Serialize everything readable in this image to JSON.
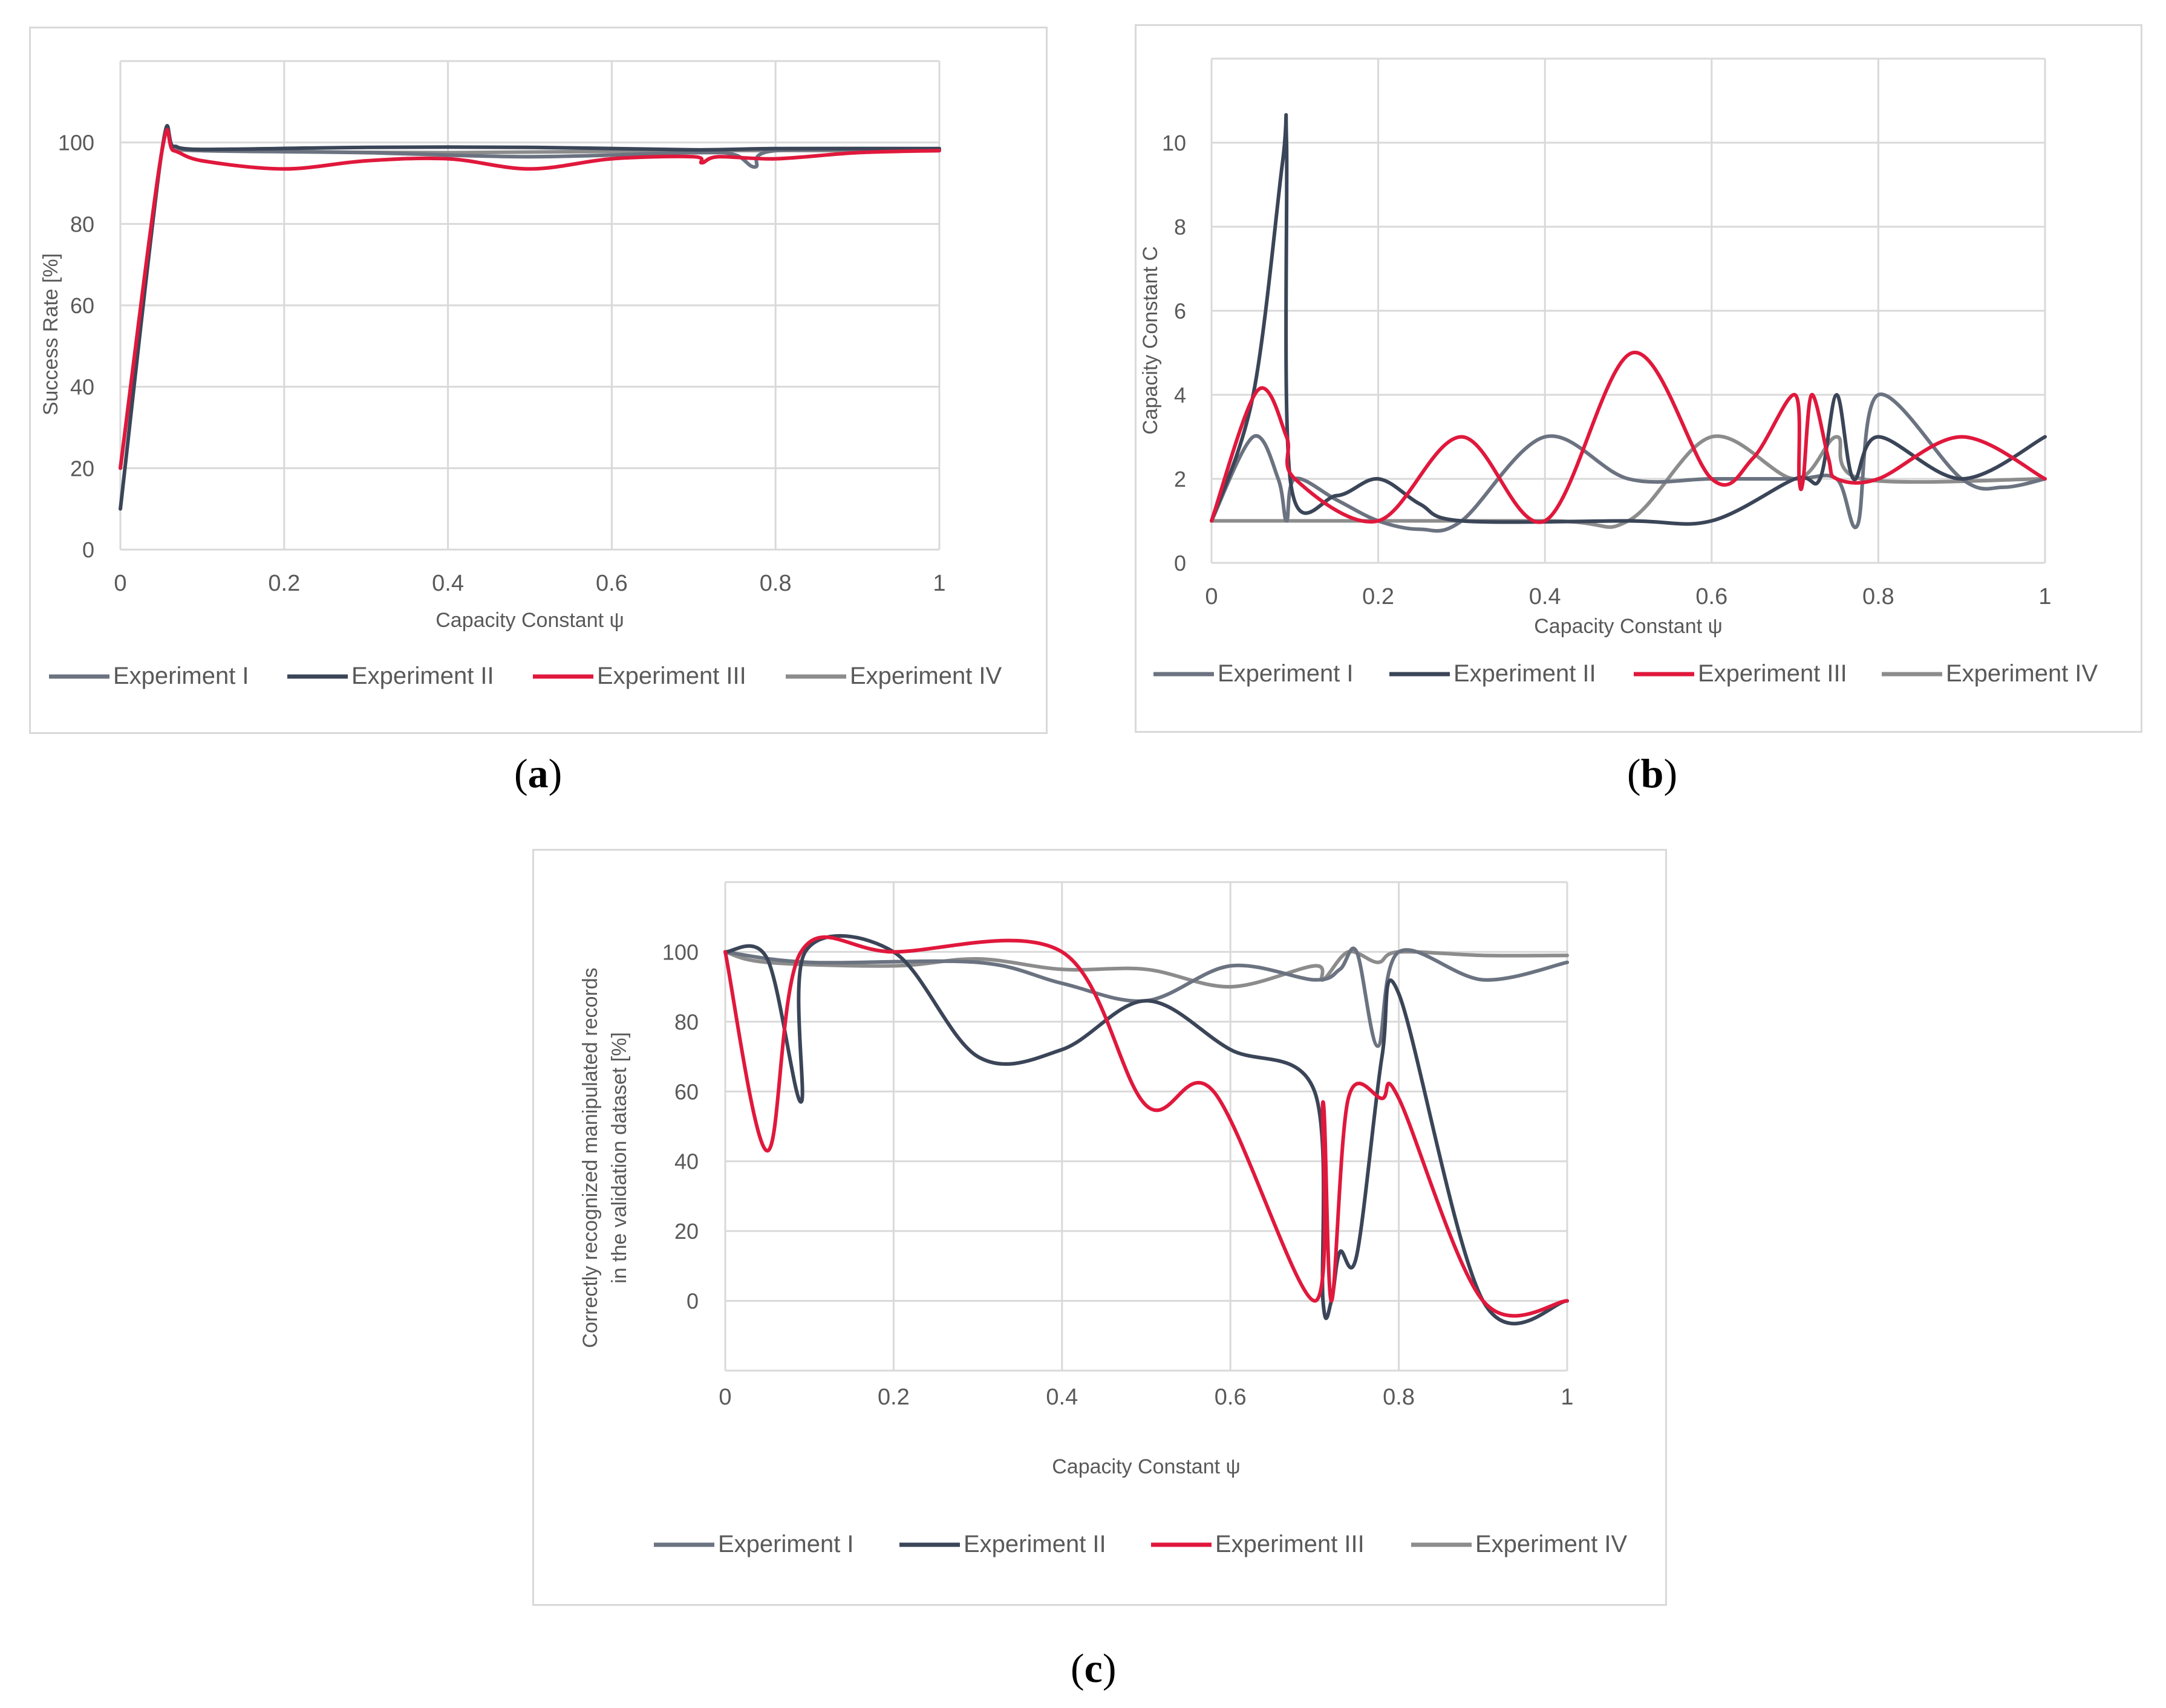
{
  "colors": {
    "experiment_i": "#6b7280",
    "experiment_ii": "#3b4558",
    "experiment_iii": "#e0183c",
    "experiment_iv": "#8c8c8c",
    "grid": "#d9d9d9",
    "axis_text": "#595959"
  },
  "captions": {
    "a": "a",
    "b": "b",
    "c": "c"
  },
  "chart_data": [
    {
      "id": "a",
      "type": "line",
      "xlabel": "Capacity Constant ψ",
      "ylabel": "Success Rate [%]",
      "xlim": [
        0,
        1
      ],
      "ylim": [
        0,
        120
      ],
      "xticks": [
        0,
        0.2,
        0.4,
        0.6,
        0.8,
        1
      ],
      "xtick_labels": [
        "0",
        "0.2",
        "0.4",
        "0.6",
        "0.8",
        "1"
      ],
      "yticks": [
        0,
        20,
        40,
        60,
        80,
        100
      ],
      "ytick_labels": [
        "0",
        "20",
        "40",
        "60",
        "80",
        "100"
      ],
      "grid": true,
      "legend_position": "bottom",
      "series": [
        {
          "name": "Experiment I",
          "color_key": "experiment_i",
          "points": [
            [
              0,
              20
            ],
            [
              0.05,
              97
            ],
            [
              0.065,
              99
            ],
            [
              0.1,
              98
            ],
            [
              0.3,
              97.5
            ],
            [
              0.5,
              96.5
            ],
            [
              0.7,
              97.5
            ],
            [
              0.75,
              97
            ],
            [
              0.775,
              94
            ],
            [
              0.8,
              98
            ],
            [
              1,
              98
            ]
          ]
        },
        {
          "name": "Experiment II",
          "color_key": "experiment_ii",
          "points": [
            [
              0,
              10
            ],
            [
              0.05,
              97
            ],
            [
              0.065,
              99
            ],
            [
              0.1,
              98.3
            ],
            [
              0.3,
              98.8
            ],
            [
              0.5,
              98.8
            ],
            [
              0.7,
              98.2
            ],
            [
              0.8,
              98.5
            ],
            [
              1,
              98.5
            ]
          ]
        },
        {
          "name": "Experiment III",
          "color_key": "experiment_iii",
          "points": [
            [
              0,
              20
            ],
            [
              0.05,
              97
            ],
            [
              0.065,
              98
            ],
            [
              0.1,
              95.5
            ],
            [
              0.2,
              93.5
            ],
            [
              0.3,
              95.5
            ],
            [
              0.4,
              96
            ],
            [
              0.5,
              93.5
            ],
            [
              0.6,
              96
            ],
            [
              0.7,
              96.5
            ],
            [
              0.71,
              95
            ],
            [
              0.73,
              96.5
            ],
            [
              0.8,
              96
            ],
            [
              0.9,
              97.5
            ],
            [
              1,
              98
            ]
          ]
        },
        {
          "name": "Experiment IV",
          "color_key": "experiment_iv",
          "points": [
            [
              0,
              20
            ],
            [
              0.05,
              97
            ],
            [
              0.065,
              98.5
            ],
            [
              0.1,
              98
            ],
            [
              0.4,
              97.5
            ],
            [
              0.7,
              98
            ],
            [
              1,
              98
            ]
          ]
        }
      ]
    },
    {
      "id": "b",
      "type": "line",
      "xlabel": "Capacity Constant ψ",
      "ylabel": "Capacity Constant C",
      "xlim": [
        0,
        1
      ],
      "ylim": [
        0,
        12
      ],
      "xticks": [
        0,
        0.2,
        0.4,
        0.6,
        0.8,
        1
      ],
      "xtick_labels": [
        "0",
        "0.2",
        "0.4",
        "0.6",
        "0.8",
        "1"
      ],
      "yticks": [
        0,
        2,
        4,
        6,
        8,
        10
      ],
      "ytick_labels": [
        "0",
        "2",
        "4",
        "6",
        "8",
        "10"
      ],
      "grid": true,
      "legend_position": "bottom",
      "series": [
        {
          "name": "Experiment I",
          "color_key": "experiment_i",
          "points": [
            [
              0,
              1
            ],
            [
              0.05,
              3
            ],
            [
              0.08,
              2
            ],
            [
              0.09,
              1
            ],
            [
              0.1,
              2
            ],
            [
              0.15,
              1.5
            ],
            [
              0.2,
              1
            ],
            [
              0.25,
              0.8
            ],
            [
              0.3,
              1
            ],
            [
              0.4,
              3
            ],
            [
              0.5,
              2
            ],
            [
              0.6,
              2
            ],
            [
              0.7,
              2
            ],
            [
              0.75,
              2
            ],
            [
              0.775,
              0.9
            ],
            [
              0.8,
              4
            ],
            [
              0.9,
              2
            ],
            [
              0.95,
              1.8
            ],
            [
              1,
              2
            ]
          ]
        },
        {
          "name": "Experiment II",
          "color_key": "experiment_ii",
          "points": [
            [
              0,
              1
            ],
            [
              0.05,
              4
            ],
            [
              0.085,
              9.5
            ],
            [
              0.09,
              10
            ],
            [
              0.095,
              1.9
            ],
            [
              0.15,
              1.6
            ],
            [
              0.2,
              2
            ],
            [
              0.25,
              1.4
            ],
            [
              0.3,
              1
            ],
            [
              0.5,
              1
            ],
            [
              0.6,
              1
            ],
            [
              0.7,
              2
            ],
            [
              0.73,
              2
            ],
            [
              0.75,
              4
            ],
            [
              0.77,
              2
            ],
            [
              0.8,
              3
            ],
            [
              0.9,
              2
            ],
            [
              1,
              3
            ]
          ]
        },
        {
          "name": "Experiment III",
          "color_key": "experiment_iii",
          "points": [
            [
              0,
              1
            ],
            [
              0.055,
              4.1
            ],
            [
              0.09,
              3
            ],
            [
              0.1,
              2
            ],
            [
              0.2,
              1
            ],
            [
              0.3,
              3
            ],
            [
              0.4,
              1
            ],
            [
              0.505,
              5
            ],
            [
              0.6,
              2
            ],
            [
              0.65,
              2.5
            ],
            [
              0.7,
              4
            ],
            [
              0.705,
              2
            ],
            [
              0.71,
              2
            ],
            [
              0.72,
              4
            ],
            [
              0.74,
              2.5
            ],
            [
              0.75,
              2
            ],
            [
              0.8,
              2
            ],
            [
              0.9,
              3
            ],
            [
              1,
              2
            ]
          ]
        },
        {
          "name": "Experiment IV",
          "color_key": "experiment_iv",
          "points": [
            [
              0,
              1
            ],
            [
              0.4,
              1
            ],
            [
              0.5,
              1
            ],
            [
              0.6,
              3
            ],
            [
              0.7,
              2
            ],
            [
              0.75,
              3
            ],
            [
              0.78,
              2
            ],
            [
              1,
              2
            ]
          ]
        }
      ]
    },
    {
      "id": "c",
      "type": "line",
      "xlabel": "Capacity Constant ψ",
      "ylabel": "Correctly recognized manipulated records",
      "ylabel2": "in the validation dataset [%]",
      "xlim": [
        0,
        1
      ],
      "ylim": [
        -20,
        120
      ],
      "xticks": [
        0,
        0.2,
        0.4,
        0.6,
        0.8,
        1
      ],
      "xtick_labels": [
        "0",
        "0.2",
        "0.4",
        "0.6",
        "0.8",
        "1"
      ],
      "yticks": [
        0,
        20,
        40,
        60,
        80,
        100
      ],
      "ytick_labels": [
        "0",
        "20",
        "40",
        "60",
        "80",
        "100"
      ],
      "grid": true,
      "legend_position": "bottom",
      "series": [
        {
          "name": "Experiment I",
          "color_key": "experiment_i",
          "points": [
            [
              0,
              100
            ],
            [
              0.1,
              97
            ],
            [
              0.3,
              97
            ],
            [
              0.4,
              91
            ],
            [
              0.5,
              86
            ],
            [
              0.6,
              96
            ],
            [
              0.7,
              92
            ],
            [
              0.73,
              95
            ],
            [
              0.75,
              100
            ],
            [
              0.775,
              73
            ],
            [
              0.8,
              100
            ],
            [
              0.9,
              92
            ],
            [
              1,
              97
            ]
          ]
        },
        {
          "name": "Experiment II",
          "color_key": "experiment_ii",
          "points": [
            [
              0,
              100
            ],
            [
              0.05,
              98
            ],
            [
              0.09,
              57
            ],
            [
              0.095,
              100
            ],
            [
              0.2,
              100
            ],
            [
              0.3,
              70
            ],
            [
              0.4,
              72
            ],
            [
              0.5,
              86
            ],
            [
              0.6,
              72
            ],
            [
              0.7,
              60
            ],
            [
              0.71,
              0
            ],
            [
              0.72,
              0
            ],
            [
              0.73,
              14
            ],
            [
              0.75,
              13
            ],
            [
              0.78,
              70
            ],
            [
              0.8,
              88
            ],
            [
              0.9,
              0
            ],
            [
              1,
              0
            ]
          ]
        },
        {
          "name": "Experiment III",
          "color_key": "experiment_iii",
          "points": [
            [
              0,
              100
            ],
            [
              0.05,
              43
            ],
            [
              0.09,
              100
            ],
            [
              0.2,
              100
            ],
            [
              0.4,
              100
            ],
            [
              0.5,
              56
            ],
            [
              0.58,
              60
            ],
            [
              0.7,
              0
            ],
            [
              0.71,
              57
            ],
            [
              0.72,
              0
            ],
            [
              0.74,
              58
            ],
            [
              0.78,
              58
            ],
            [
              0.8,
              58
            ],
            [
              0.9,
              0
            ],
            [
              1,
              0
            ]
          ]
        },
        {
          "name": "Experiment IV",
          "color_key": "experiment_iv",
          "points": [
            [
              0,
              100
            ],
            [
              0.05,
              97
            ],
            [
              0.2,
              96
            ],
            [
              0.3,
              98
            ],
            [
              0.4,
              95
            ],
            [
              0.5,
              95
            ],
            [
              0.6,
              90
            ],
            [
              0.7,
              96
            ],
            [
              0.71,
              92
            ],
            [
              0.74,
              100
            ],
            [
              0.775,
              97
            ],
            [
              0.8,
              100
            ],
            [
              0.9,
              99
            ],
            [
              1,
              99
            ]
          ]
        }
      ]
    }
  ]
}
